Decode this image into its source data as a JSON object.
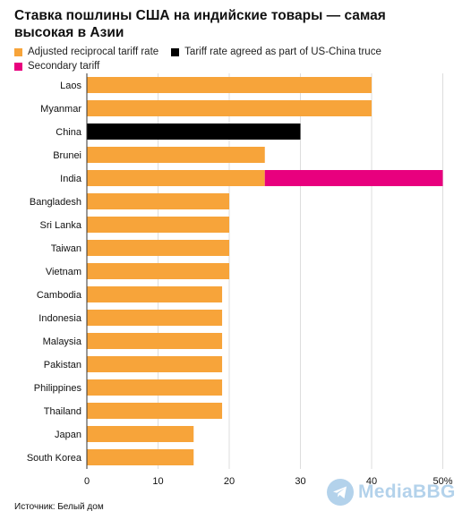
{
  "title": "Ставка пошлины США на индийские товары — самая высокая в Азии",
  "source": "Источник: Белый дом",
  "watermark": "MediaBBG",
  "colors": {
    "adjusted": "#F7A43A",
    "china": "#000000",
    "secondary": "#E8007E",
    "grid": "#dddddd"
  },
  "legend": [
    {
      "label": "Adjusted reciprocal tariff rate",
      "color": "#F7A43A"
    },
    {
      "label": "Tariff rate agreed as part of US-China truce",
      "color": "#000000"
    },
    {
      "label": "Secondary tariff",
      "color": "#E8007E"
    }
  ],
  "chart_data": {
    "type": "bar",
    "orientation": "horizontal",
    "stacked": true,
    "categories": [
      "Laos",
      "Myanmar",
      "China",
      "Brunei",
      "India",
      "Bangladesh",
      "Sri Lanka",
      "Taiwan",
      "Vietnam",
      "Cambodia",
      "Indonesia",
      "Malaysia",
      "Pakistan",
      "Philippines",
      "Thailand",
      "Japan",
      "South Korea"
    ],
    "series": [
      {
        "name": "Adjusted reciprocal tariff rate",
        "color": "#F7A43A",
        "values": [
          40,
          40,
          0,
          25,
          25,
          20,
          20,
          20,
          20,
          19,
          19,
          19,
          19,
          19,
          19,
          15,
          15
        ]
      },
      {
        "name": "Tariff rate agreed as part of US-China truce",
        "color": "#000000",
        "values": [
          0,
          0,
          30,
          0,
          0,
          0,
          0,
          0,
          0,
          0,
          0,
          0,
          0,
          0,
          0,
          0,
          0
        ]
      },
      {
        "name": "Secondary tariff",
        "color": "#E8007E",
        "values": [
          0,
          0,
          0,
          0,
          25,
          0,
          0,
          0,
          0,
          0,
          0,
          0,
          0,
          0,
          0,
          0,
          0
        ]
      }
    ],
    "xticks": [
      "0",
      "10",
      "20",
      "30",
      "40",
      "50%"
    ],
    "xlim": [
      0,
      50
    ],
    "grid": true
  }
}
